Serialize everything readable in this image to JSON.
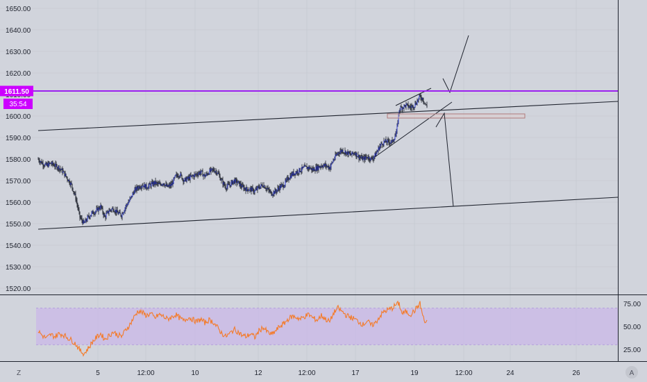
{
  "colors": {
    "background": "#d1d4dc",
    "grid": "#c3c6ce",
    "axis_border": "#1e222d",
    "candle_line": "#1e222d",
    "candle_body": "#2e3bd6",
    "horizontal_level": "#9b1ff0",
    "price_badge": "#cc00ff",
    "rsi_line": "#f47b2a",
    "rsi_band": "#c9b8e8",
    "rsi_band_border": "#b5a0db",
    "zone_box": "#b07a7a",
    "trendline": "#1e222d"
  },
  "price_axis": {
    "ticks": [
      "1650.00",
      "1640.00",
      "1630.00",
      "1620.00",
      "1610.00",
      "1600.00",
      "1590.00",
      "1580.00",
      "1570.00",
      "1560.00",
      "1550.00",
      "1540.00",
      "1530.00",
      "1520.00"
    ],
    "last_price_label": "1611.50",
    "countdown_label": "35:54"
  },
  "rsi_axis": {
    "ticks": [
      "75.00",
      "50.00",
      "25.00"
    ]
  },
  "time_axis": {
    "ticks": [
      "5",
      "12:00",
      "10",
      "12",
      "12:00",
      "17",
      "19",
      "12:00",
      "24",
      "26"
    ]
  },
  "corner_buttons": {
    "zoom": "Z",
    "auto_scale": "A"
  },
  "chart_data": [
    {
      "type": "candlestick",
      "title": "",
      "x": [
        "5",
        "12:00",
        "10",
        "12",
        "12:00",
        "17",
        "19",
        "12:00",
        "24",
        "26"
      ],
      "ylim": [
        1517,
        1652
      ],
      "close_path": [
        [
          0,
          1580
        ],
        [
          6,
          1578
        ],
        [
          12,
          1577
        ],
        [
          18,
          1578
        ],
        [
          24,
          1577
        ],
        [
          30,
          1576
        ],
        [
          36,
          1574
        ],
        [
          42,
          1571
        ],
        [
          48,
          1568
        ],
        [
          54,
          1562
        ],
        [
          60,
          1553
        ],
        [
          66,
          1550
        ],
        [
          72,
          1553
        ],
        [
          78,
          1555
        ],
        [
          84,
          1556
        ],
        [
          90,
          1558
        ],
        [
          96,
          1553
        ],
        [
          102,
          1556
        ],
        [
          108,
          1557
        ],
        [
          114,
          1555
        ],
        [
          120,
          1554
        ],
        [
          126,
          1558
        ],
        [
          132,
          1561
        ],
        [
          138,
          1565
        ],
        [
          144,
          1567
        ],
        [
          150,
          1568
        ],
        [
          156,
          1567
        ],
        [
          162,
          1568
        ],
        [
          168,
          1569
        ],
        [
          174,
          1568
        ],
        [
          180,
          1569
        ],
        [
          186,
          1567
        ],
        [
          192,
          1568
        ],
        [
          198,
          1572
        ],
        [
          204,
          1573
        ],
        [
          210,
          1570
        ],
        [
          216,
          1571
        ],
        [
          222,
          1572
        ],
        [
          228,
          1573
        ],
        [
          234,
          1574
        ],
        [
          240,
          1572
        ],
        [
          246,
          1574
        ],
        [
          252,
          1575
        ],
        [
          258,
          1574
        ],
        [
          264,
          1570
        ],
        [
          270,
          1567
        ],
        [
          276,
          1568
        ],
        [
          282,
          1570
        ],
        [
          288,
          1569
        ],
        [
          294,
          1567
        ],
        [
          300,
          1566
        ],
        [
          306,
          1566
        ],
        [
          312,
          1565
        ],
        [
          318,
          1567
        ],
        [
          324,
          1568
        ],
        [
          330,
          1566
        ],
        [
          336,
          1564
        ],
        [
          342,
          1565
        ],
        [
          348,
          1567
        ],
        [
          354,
          1568
        ],
        [
          360,
          1571
        ],
        [
          366,
          1573
        ],
        [
          372,
          1574
        ],
        [
          378,
          1575
        ],
        [
          384,
          1576
        ],
        [
          390,
          1576
        ],
        [
          396,
          1575
        ],
        [
          402,
          1576
        ],
        [
          408,
          1577
        ],
        [
          414,
          1577
        ],
        [
          420,
          1576
        ],
        [
          426,
          1580
        ],
        [
          432,
          1583
        ],
        [
          438,
          1584
        ],
        [
          444,
          1583
        ],
        [
          450,
          1582
        ],
        [
          456,
          1583
        ],
        [
          462,
          1581
        ],
        [
          468,
          1580
        ],
        [
          474,
          1581
        ],
        [
          480,
          1580
        ],
        [
          486,
          1582
        ],
        [
          492,
          1586
        ],
        [
          498,
          1588
        ],
        [
          504,
          1588
        ],
        [
          510,
          1588
        ],
        [
          516,
          1592
        ],
        [
          520,
          1603
        ],
        [
          524,
          1604
        ],
        [
          530,
          1605
        ],
        [
          536,
          1604
        ],
        [
          542,
          1605
        ],
        [
          546,
          1607
        ],
        [
          550,
          1609
        ],
        [
          554,
          1608
        ],
        [
          557,
          1606
        ],
        [
          560,
          1604
        ]
      ]
    },
    {
      "type": "line",
      "title": "",
      "ylim": [
        17,
        80
      ],
      "band": [
        30,
        70
      ],
      "series": [
        {
          "values": [
            [
              0,
              45
            ],
            [
              6,
              40
            ],
            [
              12,
              37
            ],
            [
              18,
              41
            ],
            [
              24,
              39
            ],
            [
              30,
              42
            ],
            [
              36,
              41
            ],
            [
              42,
              38
            ],
            [
              48,
              35
            ],
            [
              54,
              31
            ],
            [
              60,
              24
            ],
            [
              66,
              20
            ],
            [
              72,
              26
            ],
            [
              78,
              33
            ],
            [
              84,
              38
            ],
            [
              90,
              42
            ],
            [
              96,
              36
            ],
            [
              102,
              40
            ],
            [
              108,
              44
            ],
            [
              114,
              41
            ],
            [
              120,
              39
            ],
            [
              126,
              46
            ],
            [
              132,
              52
            ],
            [
              138,
              60
            ],
            [
              144,
              67
            ],
            [
              150,
              65
            ],
            [
              156,
              62
            ],
            [
              162,
              64
            ],
            [
              168,
              59
            ],
            [
              174,
              63
            ],
            [
              180,
              61
            ],
            [
              186,
              58
            ],
            [
              192,
              60
            ],
            [
              198,
              63
            ],
            [
              204,
              59
            ],
            [
              210,
              56
            ],
            [
              216,
              60
            ],
            [
              222,
              58
            ],
            [
              228,
              55
            ],
            [
              234,
              58
            ],
            [
              240,
              54
            ],
            [
              246,
              57
            ],
            [
              252,
              55
            ],
            [
              258,
              49
            ],
            [
              264,
              43
            ],
            [
              270,
              39
            ],
            [
              276,
              42
            ],
            [
              282,
              47
            ],
            [
              288,
              44
            ],
            [
              294,
              40
            ],
            [
              300,
              39
            ],
            [
              306,
              42
            ],
            [
              312,
              38
            ],
            [
              318,
              45
            ],
            [
              324,
              49
            ],
            [
              330,
              44
            ],
            [
              336,
              41
            ],
            [
              342,
              45
            ],
            [
              348,
              50
            ],
            [
              354,
              53
            ],
            [
              360,
              58
            ],
            [
              366,
              61
            ],
            [
              372,
              60
            ],
            [
              378,
              58
            ],
            [
              384,
              61
            ],
            [
              390,
              63
            ],
            [
              396,
              59
            ],
            [
              402,
              57
            ],
            [
              408,
              62
            ],
            [
              414,
              58
            ],
            [
              420,
              55
            ],
            [
              426,
              65
            ],
            [
              432,
              70
            ],
            [
              438,
              66
            ],
            [
              444,
              62
            ],
            [
              450,
              60
            ],
            [
              456,
              58
            ],
            [
              462,
              55
            ],
            [
              468,
              52
            ],
            [
              474,
              56
            ],
            [
              480,
              51
            ],
            [
              486,
              54
            ],
            [
              492,
              61
            ],
            [
              498,
              66
            ],
            [
              504,
              68
            ],
            [
              510,
              70
            ],
            [
              516,
              74
            ],
            [
              520,
              75
            ],
            [
              524,
              64
            ],
            [
              530,
              66
            ],
            [
              536,
              63
            ],
            [
              542,
              67
            ],
            [
              546,
              71
            ],
            [
              550,
              75
            ],
            [
              554,
              62
            ],
            [
              557,
              54
            ],
            [
              560,
              56
            ]
          ]
        }
      ]
    }
  ]
}
